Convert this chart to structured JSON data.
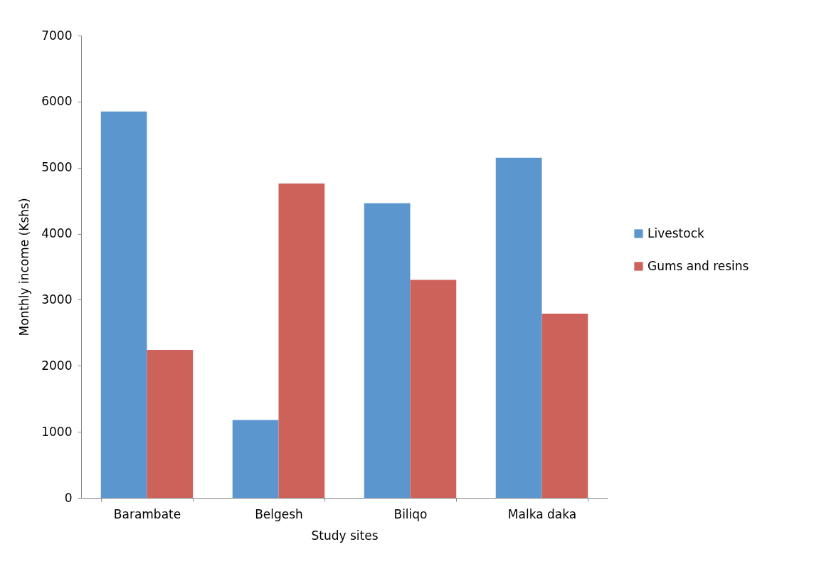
{
  "chart_data": {
    "type": "bar",
    "xlabel": "Study sites",
    "ylabel": "Monthly income (Kshs)",
    "categories": [
      "Barambate",
      "Belgesh",
      "Biliqo",
      "Malka daka"
    ],
    "series": [
      {
        "name": "Livestock",
        "color": "#5b96cf",
        "values": [
          5850,
          1180,
          4460,
          5150
        ]
      },
      {
        "name": "Gums and resins",
        "color": "#cd625b",
        "values": [
          2240,
          4760,
          3300,
          2790
        ]
      }
    ],
    "ylim": [
      0,
      7000
    ],
    "yticks": [
      0,
      1000,
      2000,
      3000,
      4000,
      5000,
      6000,
      7000
    ],
    "grid": false,
    "legend": "right"
  }
}
